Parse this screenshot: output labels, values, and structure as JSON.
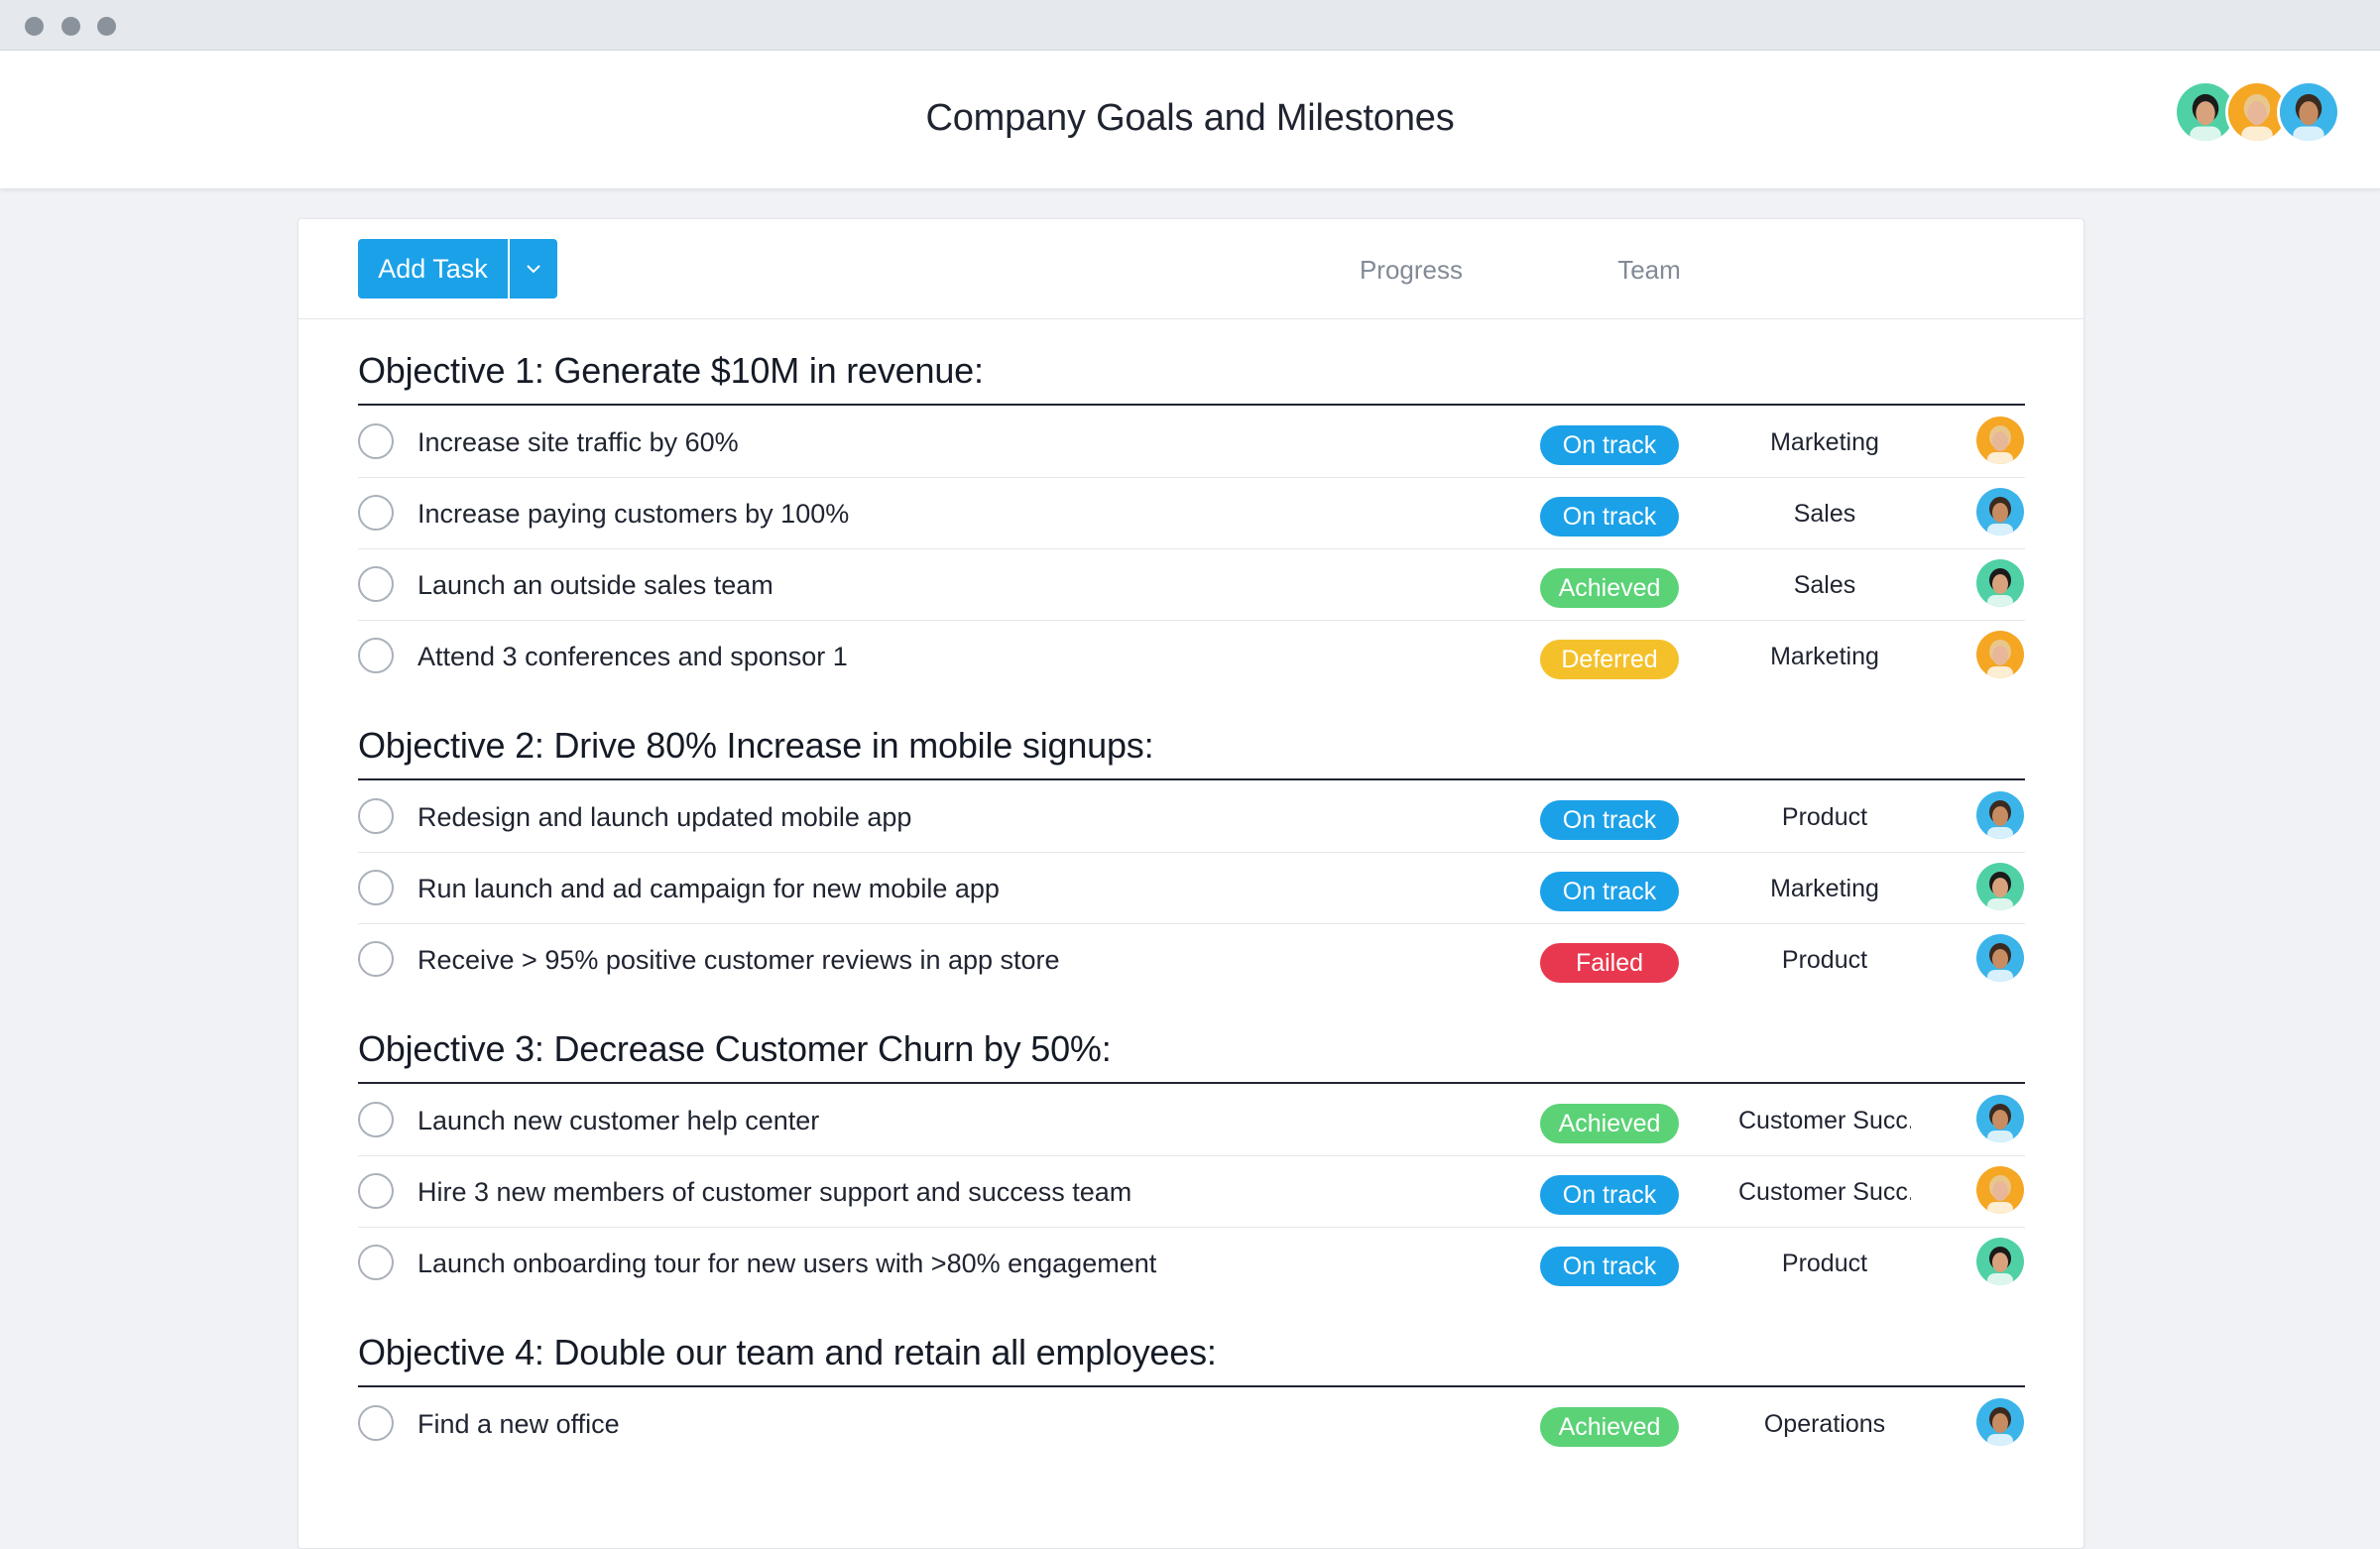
{
  "window": {
    "title": "Company Goals and Milestones"
  },
  "toolbar": {
    "add_task_label": "Add Task",
    "progress_header": "Progress",
    "team_header": "Team"
  },
  "colors": {
    "primary": "#1ba1e8",
    "status": {
      "On track": "#1ba1e8",
      "Achieved": "#5bd276",
      "Deferred": "#f5c12b",
      "Failed": "#e8384f"
    }
  },
  "avatars": {
    "teal": {
      "bg": "#4fd1a5",
      "hair": "#1b1b1b",
      "skin": "#d8a27d"
    },
    "orange": {
      "bg": "#f5a623",
      "hair": "#e9c78a",
      "skin": "#e8b79a"
    },
    "blue": {
      "bg": "#3bb4ea",
      "hair": "#3a2a20",
      "skin": "#c78c62"
    }
  },
  "header_members": [
    "teal",
    "orange",
    "blue"
  ],
  "sections": [
    {
      "title": "Objective 1: Generate $10M in revenue:",
      "tasks": [
        {
          "name": "Increase site traffic by 60%",
          "status": "On track",
          "team": "Marketing",
          "avatar": "orange"
        },
        {
          "name": "Increase paying customers by 100%",
          "status": "On track",
          "team": "Sales",
          "avatar": "blue"
        },
        {
          "name": "Launch an outside sales team",
          "status": "Achieved",
          "team": "Sales",
          "avatar": "teal"
        },
        {
          "name": "Attend 3 conferences and sponsor 1",
          "status": "Deferred",
          "team": "Marketing",
          "avatar": "orange"
        }
      ]
    },
    {
      "title": "Objective 2: Drive 80% Increase in mobile signups:",
      "tasks": [
        {
          "name": "Redesign and launch updated mobile app",
          "status": "On track",
          "team": "Product",
          "avatar": "blue"
        },
        {
          "name": "Run launch and ad campaign for new mobile app",
          "status": "On track",
          "team": "Marketing",
          "avatar": "teal"
        },
        {
          "name": "Receive > 95% positive customer reviews in app store",
          "status": "Failed",
          "team": "Product",
          "avatar": "blue"
        }
      ]
    },
    {
      "title": "Objective 3: Decrease Customer Churn by 50%:",
      "tasks": [
        {
          "name": "Launch new customer help center",
          "status": "Achieved",
          "team": "Customer Succ...",
          "avatar": "blue"
        },
        {
          "name": "Hire 3 new members of customer support and success team",
          "status": "On track",
          "team": "Customer Succ...",
          "avatar": "orange"
        },
        {
          "name": "Launch onboarding tour for new users with >80% engagement",
          "status": "On track",
          "team": "Product",
          "avatar": "teal"
        }
      ]
    },
    {
      "title": "Objective 4: Double our team and retain all employees:",
      "tasks": [
        {
          "name": "Find a new office",
          "status": "Achieved",
          "team": "Operations",
          "avatar": "blue"
        }
      ]
    }
  ]
}
